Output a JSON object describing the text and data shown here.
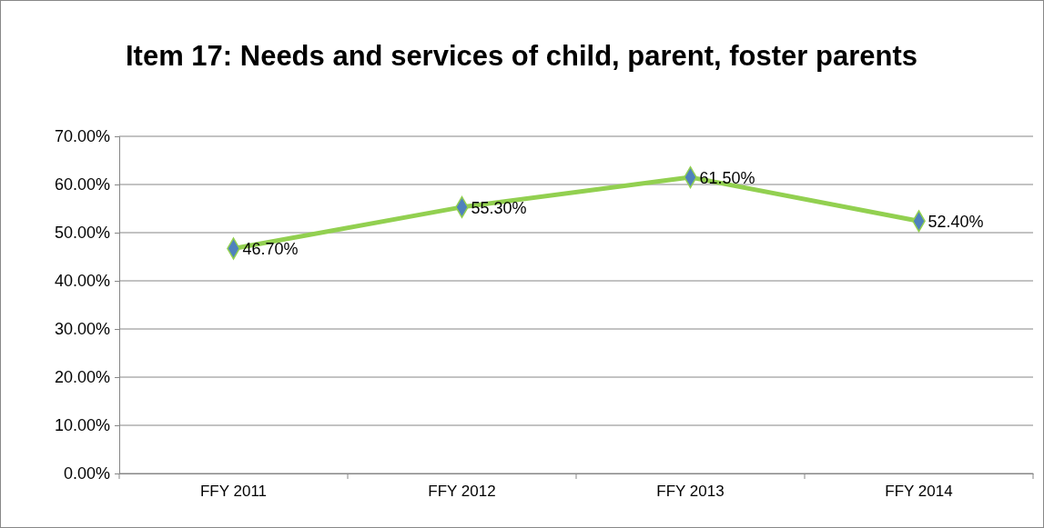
{
  "chart_data": {
    "type": "line",
    "title": "Item 17: Needs and services of child, parent, foster parents",
    "categories": [
      "FFY 2011",
      "FFY 2012",
      "FFY 2013",
      "FFY 2014"
    ],
    "series": [
      {
        "color": "#92d050",
        "values": [
          46.7,
          55.3,
          61.5,
          52.4
        ]
      }
    ],
    "value_labels": [
      "46.70%",
      "55.30%",
      "61.50%",
      "52.40%"
    ],
    "ylim": [
      0,
      70
    ],
    "yticks": [
      {
        "value": 0,
        "label": "0.00%"
      },
      {
        "value": 10,
        "label": "10.00%"
      },
      {
        "value": 20,
        "label": "20.00%"
      },
      {
        "value": 30,
        "label": "30.00%"
      },
      {
        "value": 40,
        "label": "40.00%"
      },
      {
        "value": 50,
        "label": "50.00%"
      },
      {
        "value": 60,
        "label": "60.00%"
      },
      {
        "value": 70,
        "label": "70.00%"
      }
    ],
    "grid": "y",
    "marker": "diamond",
    "line_style": "solid"
  }
}
